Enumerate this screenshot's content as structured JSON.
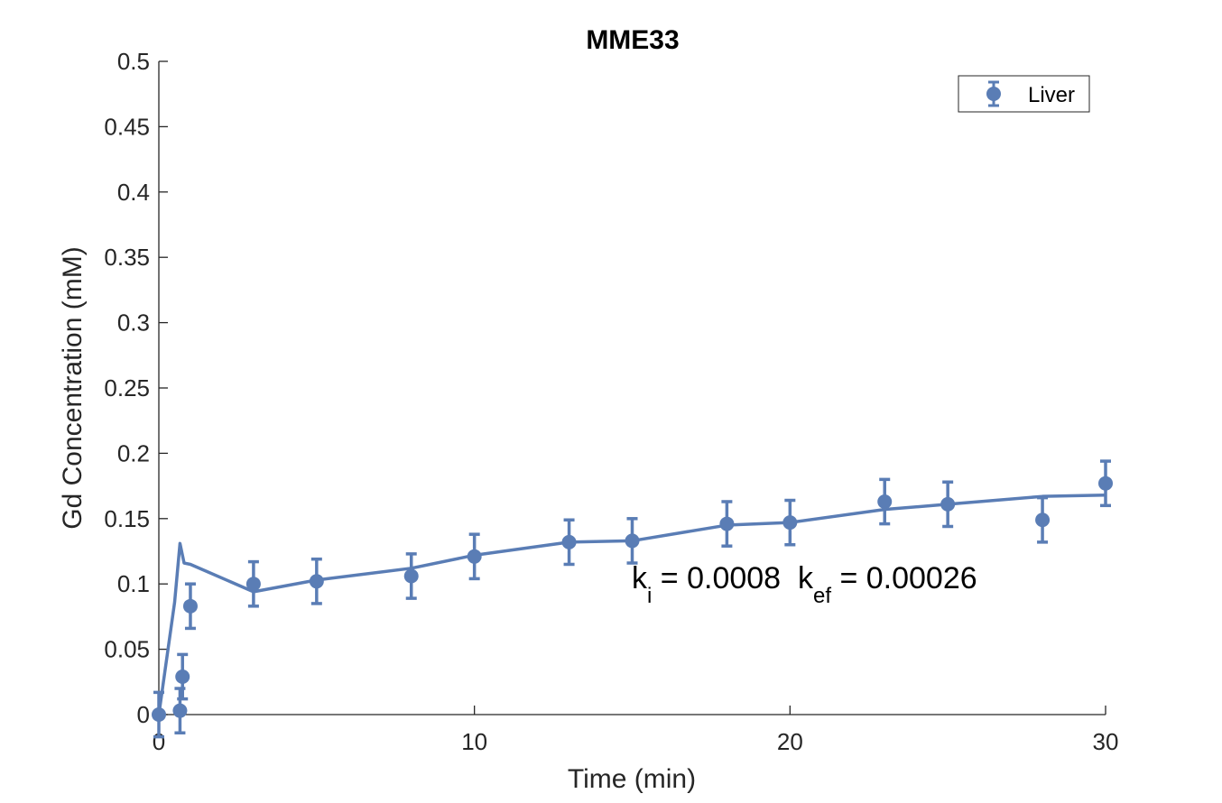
{
  "chart_data": {
    "type": "scatter",
    "title": "MME33",
    "xlabel": "Time (min)",
    "ylabel": "Gd Concentration (mM)",
    "xlim": [
      0,
      30
    ],
    "ylim": [
      0,
      0.5
    ],
    "xticks": [
      0,
      10,
      20,
      30
    ],
    "xtick_labels": [
      "0",
      "10",
      "20",
      "30"
    ],
    "yticks": [
      0,
      0.05,
      0.1,
      0.15,
      0.2,
      0.25,
      0.3,
      0.35,
      0.4,
      0.45,
      0.5
    ],
    "ytick_labels": [
      "0",
      "0.05",
      "0.1",
      "0.15",
      "0.2",
      "0.25",
      "0.3",
      "0.35",
      "0.4",
      "0.45",
      "0.5"
    ],
    "grid": false,
    "legend_position": "top-right",
    "series": [
      {
        "name": "Liver",
        "kind": "errorbar",
        "color": "#5a7db5",
        "x": [
          0,
          0.67,
          0.75,
          1,
          3,
          5,
          8,
          10,
          13,
          15,
          18,
          20,
          23,
          25,
          28,
          30
        ],
        "y": [
          0,
          0.003,
          0.029,
          0.083,
          0.1,
          0.102,
          0.106,
          0.121,
          0.132,
          0.133,
          0.146,
          0.147,
          0.163,
          0.161,
          0.149,
          0.177
        ],
        "err": [
          0.017,
          0.017,
          0.017,
          0.017,
          0.017,
          0.017,
          0.017,
          0.017,
          0.017,
          0.017,
          0.017,
          0.017,
          0.017,
          0.017,
          0.017,
          0.017
        ]
      },
      {
        "kind": "line",
        "color": "#5a7db5",
        "x": [
          0,
          0.5,
          0.67,
          0.8,
          1,
          3,
          5,
          8,
          10,
          13,
          15,
          18,
          20,
          23,
          25,
          28,
          30
        ],
        "y": [
          0,
          0.086,
          0.131,
          0.116,
          0.115,
          0.094,
          0.103,
          0.112,
          0.122,
          0.132,
          0.133,
          0.145,
          0.147,
          0.157,
          0.161,
          0.167,
          0.168
        ]
      }
    ],
    "annotation": {
      "k1": "k",
      "k1_sub": "i",
      "k1_val": " = 0.0008  ",
      "k2": "k",
      "k2_sub": "ef",
      "k2_val": " = 0.00026",
      "x": 15,
      "y": 0.1
    }
  }
}
